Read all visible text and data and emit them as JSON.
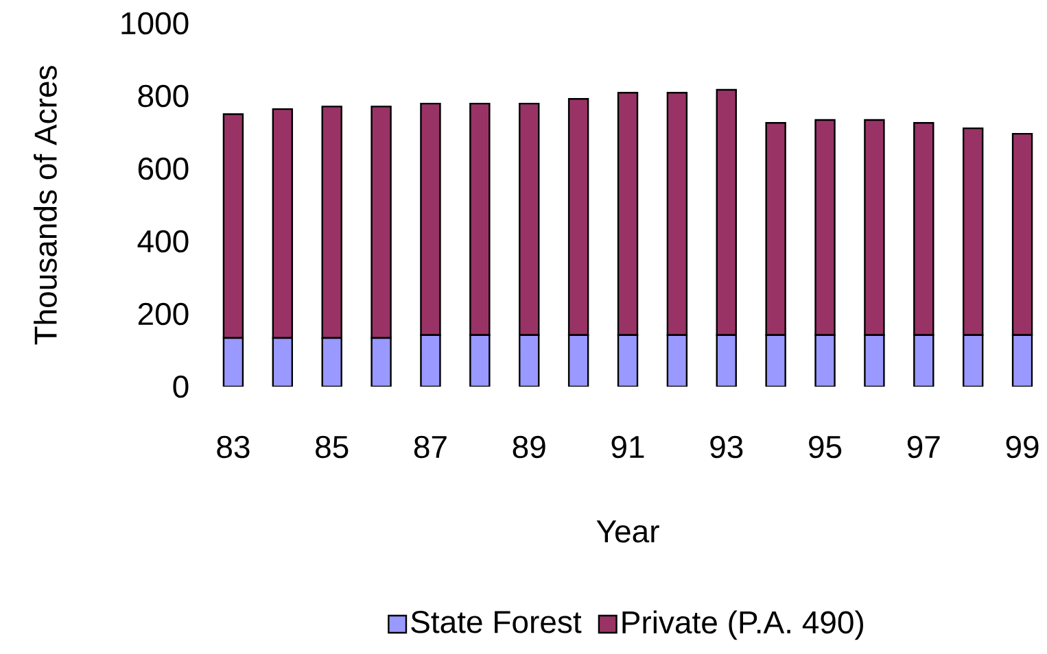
{
  "chart_data": {
    "type": "bar",
    "stacked": true,
    "xlabel": "Year",
    "ylabel": "Thousands of Acres",
    "categories": [
      "83",
      null,
      "85",
      null,
      "87",
      null,
      "89",
      null,
      "91",
      null,
      "93",
      null,
      "95",
      null,
      "97",
      null,
      "99"
    ],
    "series": [
      {
        "name": "State Forest",
        "color": "#9999ff",
        "values": [
          134,
          134,
          134,
          134,
          142,
          142,
          142,
          142,
          142,
          142,
          142,
          142,
          142,
          142,
          142,
          142,
          142
        ]
      },
      {
        "name": "Private (P.A. 490)",
        "color": "#993366",
        "values": [
          616,
          630,
          637,
          637,
          637,
          637,
          637,
          650,
          667,
          667,
          675,
          584,
          592,
          592,
          584,
          569,
          554
        ]
      }
    ],
    "ylim": [
      0,
      1000
    ],
    "yticks": [
      0,
      200,
      400,
      600,
      800,
      1000
    ],
    "legend": "bottom"
  }
}
